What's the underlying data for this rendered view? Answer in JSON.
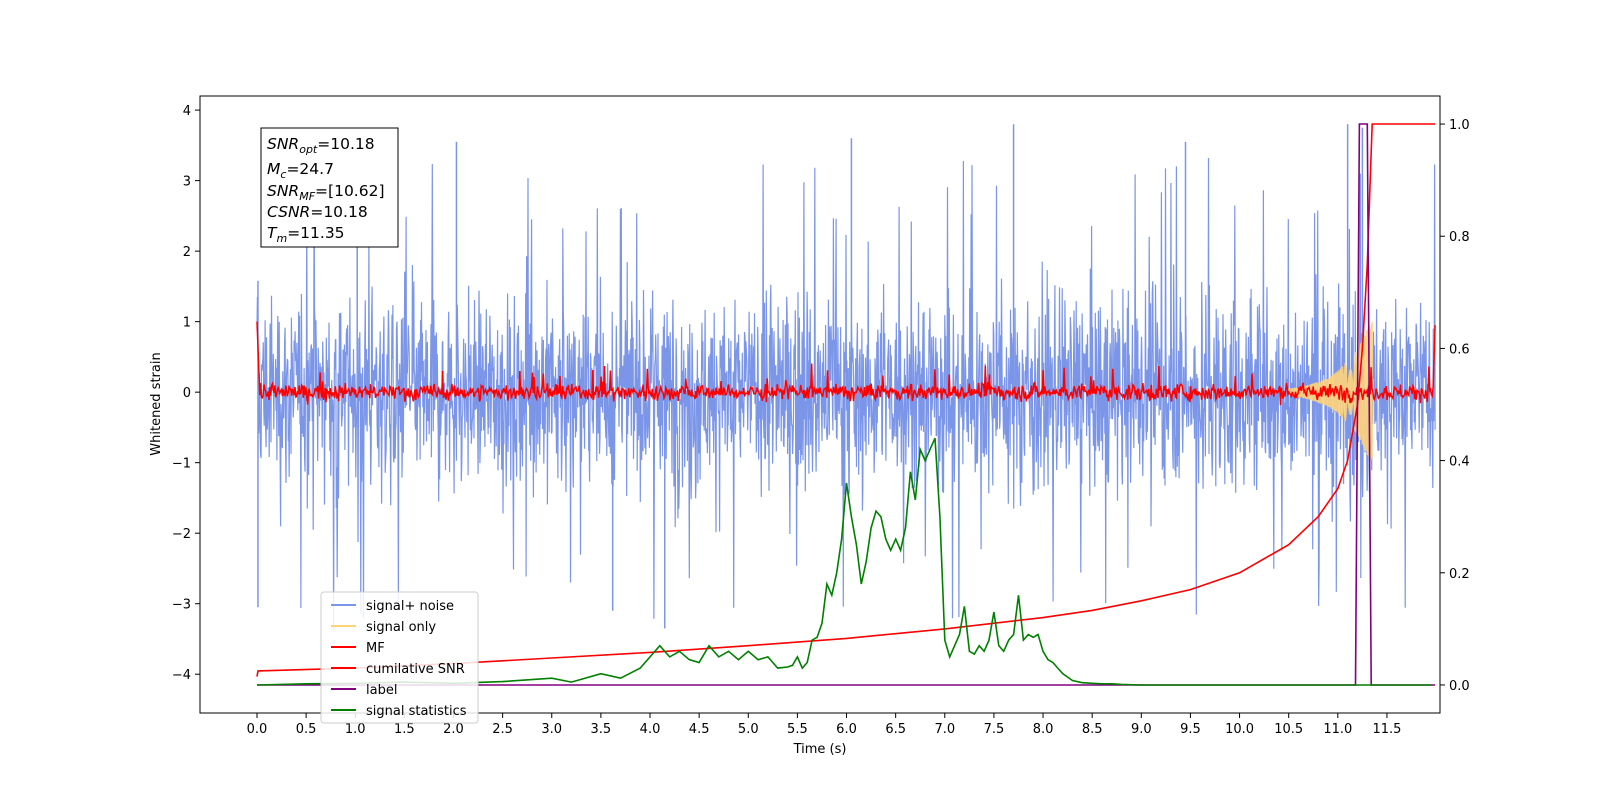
{
  "chart_data": {
    "type": "line",
    "xlabel": "Time (s)",
    "ylabel": "Whitened strain",
    "xlim": [
      -0.58,
      12.04
    ],
    "ylim": [
      -4.55,
      4.2
    ],
    "y2lim": [
      -0.05,
      1.05
    ],
    "x_ticks": [
      "0.0",
      "0.5",
      "1.0",
      "1.5",
      "2.0",
      "2.5",
      "3.0",
      "3.5",
      "4.0",
      "4.5",
      "5.0",
      "5.5",
      "6.0",
      "6.5",
      "7.0",
      "7.5",
      "8.0",
      "8.5",
      "9.0",
      "9.5",
      "10.0",
      "10.5",
      "11.0",
      "11.5"
    ],
    "y_ticks": [
      "4",
      "3",
      "2",
      "1",
      "0",
      "−1",
      "−2",
      "−3",
      "−4"
    ],
    "y2_ticks": [
      "1.0",
      "0.8",
      "0.6",
      "0.4",
      "0.2",
      "0.0"
    ],
    "grid": false,
    "legend": {
      "placement": "lower-left",
      "entries": [
        {
          "label": "signal+ noise",
          "color": "#7b96e8"
        },
        {
          "label": "signal only",
          "color": "#ffd37a"
        },
        {
          "label": "MF",
          "color": "#ff0000"
        },
        {
          "label": "cumilative SNR",
          "color": "#ff0000"
        },
        {
          "label": "label",
          "color": "#800080"
        },
        {
          "label": "signal statistics",
          "color": "#008000"
        }
      ]
    },
    "annotation": {
      "snr_opt": {
        "label": "SNR",
        "sub": "opt",
        "value": "=10.18"
      },
      "mc": {
        "label": "M",
        "sub": "c",
        "value": "=24.7"
      },
      "snr_mf": {
        "label": "SNR",
        "sub": "MF",
        "value": "=[10.62]"
      },
      "csnr": {
        "label": "CSNR",
        "sub": "",
        "value": "=10.18"
      },
      "tm": {
        "label": "T",
        "sub": "m",
        "value": "=11.35"
      }
    },
    "series": [
      {
        "name": "signal+ noise",
        "axis": "left",
        "color": "#7b96e8",
        "x_range": [
          0.0,
          11.99
        ],
        "approx_envelope": {
          "max": 3.8,
          "min": -4.05,
          "typical_max": 2.2,
          "typical_min": -2.0
        },
        "notable_peaks": [
          [
            0.01,
            1.58
          ],
          [
            0.01,
            -3.05
          ],
          [
            1.02,
            2.9
          ],
          [
            2.03,
            3.55
          ],
          [
            3.62,
            -3.1
          ],
          [
            4.15,
            -3.35
          ],
          [
            6.05,
            3.6
          ],
          [
            7.7,
            3.8
          ],
          [
            9.45,
            3.55
          ],
          [
            11.1,
            3.8
          ],
          [
            11.25,
            3.75
          ]
        ]
      },
      {
        "name": "signal only",
        "axis": "left",
        "color": "#ffd37a",
        "x": [
          10.5,
          10.7,
          10.9,
          11.0,
          11.1,
          11.2,
          11.3,
          11.35
        ],
        "envelope": [
          0.05,
          0.1,
          0.2,
          0.3,
          0.45,
          0.6,
          0.9,
          1.0
        ]
      },
      {
        "name": "MF",
        "axis": "left",
        "color": "#ff0000",
        "x_range": [
          0.0,
          11.99
        ],
        "baseline": 0.0,
        "noise_amplitude": 0.15,
        "edge_values": [
          [
            0.0,
            1.0
          ],
          [
            0.02,
            0.0
          ],
          [
            11.98,
            0.0
          ],
          [
            11.99,
            0.95
          ]
        ]
      },
      {
        "name": "cumilative SNR",
        "axis": "right",
        "color": "#ff0000",
        "x": [
          0.0,
          0.01,
          1.0,
          2.0,
          3.0,
          4.0,
          5.0,
          6.0,
          7.0,
          8.0,
          8.5,
          9.0,
          9.5,
          10.0,
          10.5,
          10.8,
          11.0,
          11.1,
          11.2,
          11.25,
          11.3,
          11.33,
          11.35,
          11.99
        ],
        "values": [
          0.015,
          0.025,
          0.03,
          0.038,
          0.048,
          0.058,
          0.07,
          0.083,
          0.1,
          0.12,
          0.133,
          0.15,
          0.17,
          0.2,
          0.25,
          0.3,
          0.35,
          0.4,
          0.5,
          0.6,
          0.75,
          0.9,
          1.0,
          1.0
        ]
      },
      {
        "name": "label",
        "axis": "right",
        "color": "#800080",
        "x": [
          0.0,
          11.18,
          11.22,
          11.3,
          11.34,
          11.38,
          11.99
        ],
        "values": [
          0.0,
          0.0,
          1.0,
          1.0,
          0.0,
          0.0,
          0.0
        ]
      },
      {
        "name": "signal statistics",
        "axis": "right",
        "color": "#008000",
        "x": [
          0.0,
          0.5,
          1.0,
          1.5,
          2.0,
          2.5,
          3.0,
          3.2,
          3.5,
          3.7,
          3.9,
          4.0,
          4.1,
          4.2,
          4.3,
          4.4,
          4.5,
          4.6,
          4.7,
          4.8,
          4.9,
          5.0,
          5.1,
          5.2,
          5.3,
          5.4,
          5.45,
          5.5,
          5.55,
          5.6,
          5.65,
          5.7,
          5.75,
          5.8,
          5.85,
          5.9,
          5.95,
          6.0,
          6.05,
          6.1,
          6.15,
          6.2,
          6.25,
          6.3,
          6.35,
          6.4,
          6.45,
          6.5,
          6.55,
          6.6,
          6.65,
          6.7,
          6.75,
          6.8,
          6.85,
          6.9,
          6.95,
          7.0,
          7.05,
          7.1,
          7.15,
          7.2,
          7.25,
          7.3,
          7.35,
          7.4,
          7.45,
          7.5,
          7.55,
          7.6,
          7.65,
          7.7,
          7.75,
          7.8,
          7.85,
          7.9,
          7.95,
          8.0,
          8.05,
          8.1,
          8.15,
          8.2,
          8.3,
          8.4,
          8.5,
          8.6,
          8.7,
          8.8,
          9.0,
          9.5,
          10.0,
          10.5,
          11.0,
          11.5,
          11.95
        ],
        "values": [
          0.0,
          0.002,
          0.003,
          0.005,
          0.003,
          0.006,
          0.012,
          0.005,
          0.02,
          0.012,
          0.03,
          0.05,
          0.07,
          0.05,
          0.06,
          0.045,
          0.04,
          0.07,
          0.05,
          0.06,
          0.045,
          0.06,
          0.045,
          0.05,
          0.03,
          0.032,
          0.035,
          0.05,
          0.03,
          0.04,
          0.08,
          0.085,
          0.11,
          0.18,
          0.16,
          0.2,
          0.26,
          0.36,
          0.3,
          0.25,
          0.18,
          0.22,
          0.28,
          0.31,
          0.3,
          0.26,
          0.24,
          0.26,
          0.24,
          0.28,
          0.38,
          0.33,
          0.42,
          0.4,
          0.42,
          0.44,
          0.3,
          0.08,
          0.05,
          0.07,
          0.09,
          0.14,
          0.06,
          0.055,
          0.07,
          0.06,
          0.08,
          0.13,
          0.07,
          0.06,
          0.08,
          0.09,
          0.16,
          0.08,
          0.09,
          0.085,
          0.09,
          0.06,
          0.045,
          0.04,
          0.03,
          0.02,
          0.008,
          0.004,
          0.003,
          0.002,
          0.002,
          0.001,
          0.0,
          0.0,
          0.0,
          0.0,
          0.0,
          0.0,
          0.0
        ]
      }
    ]
  }
}
